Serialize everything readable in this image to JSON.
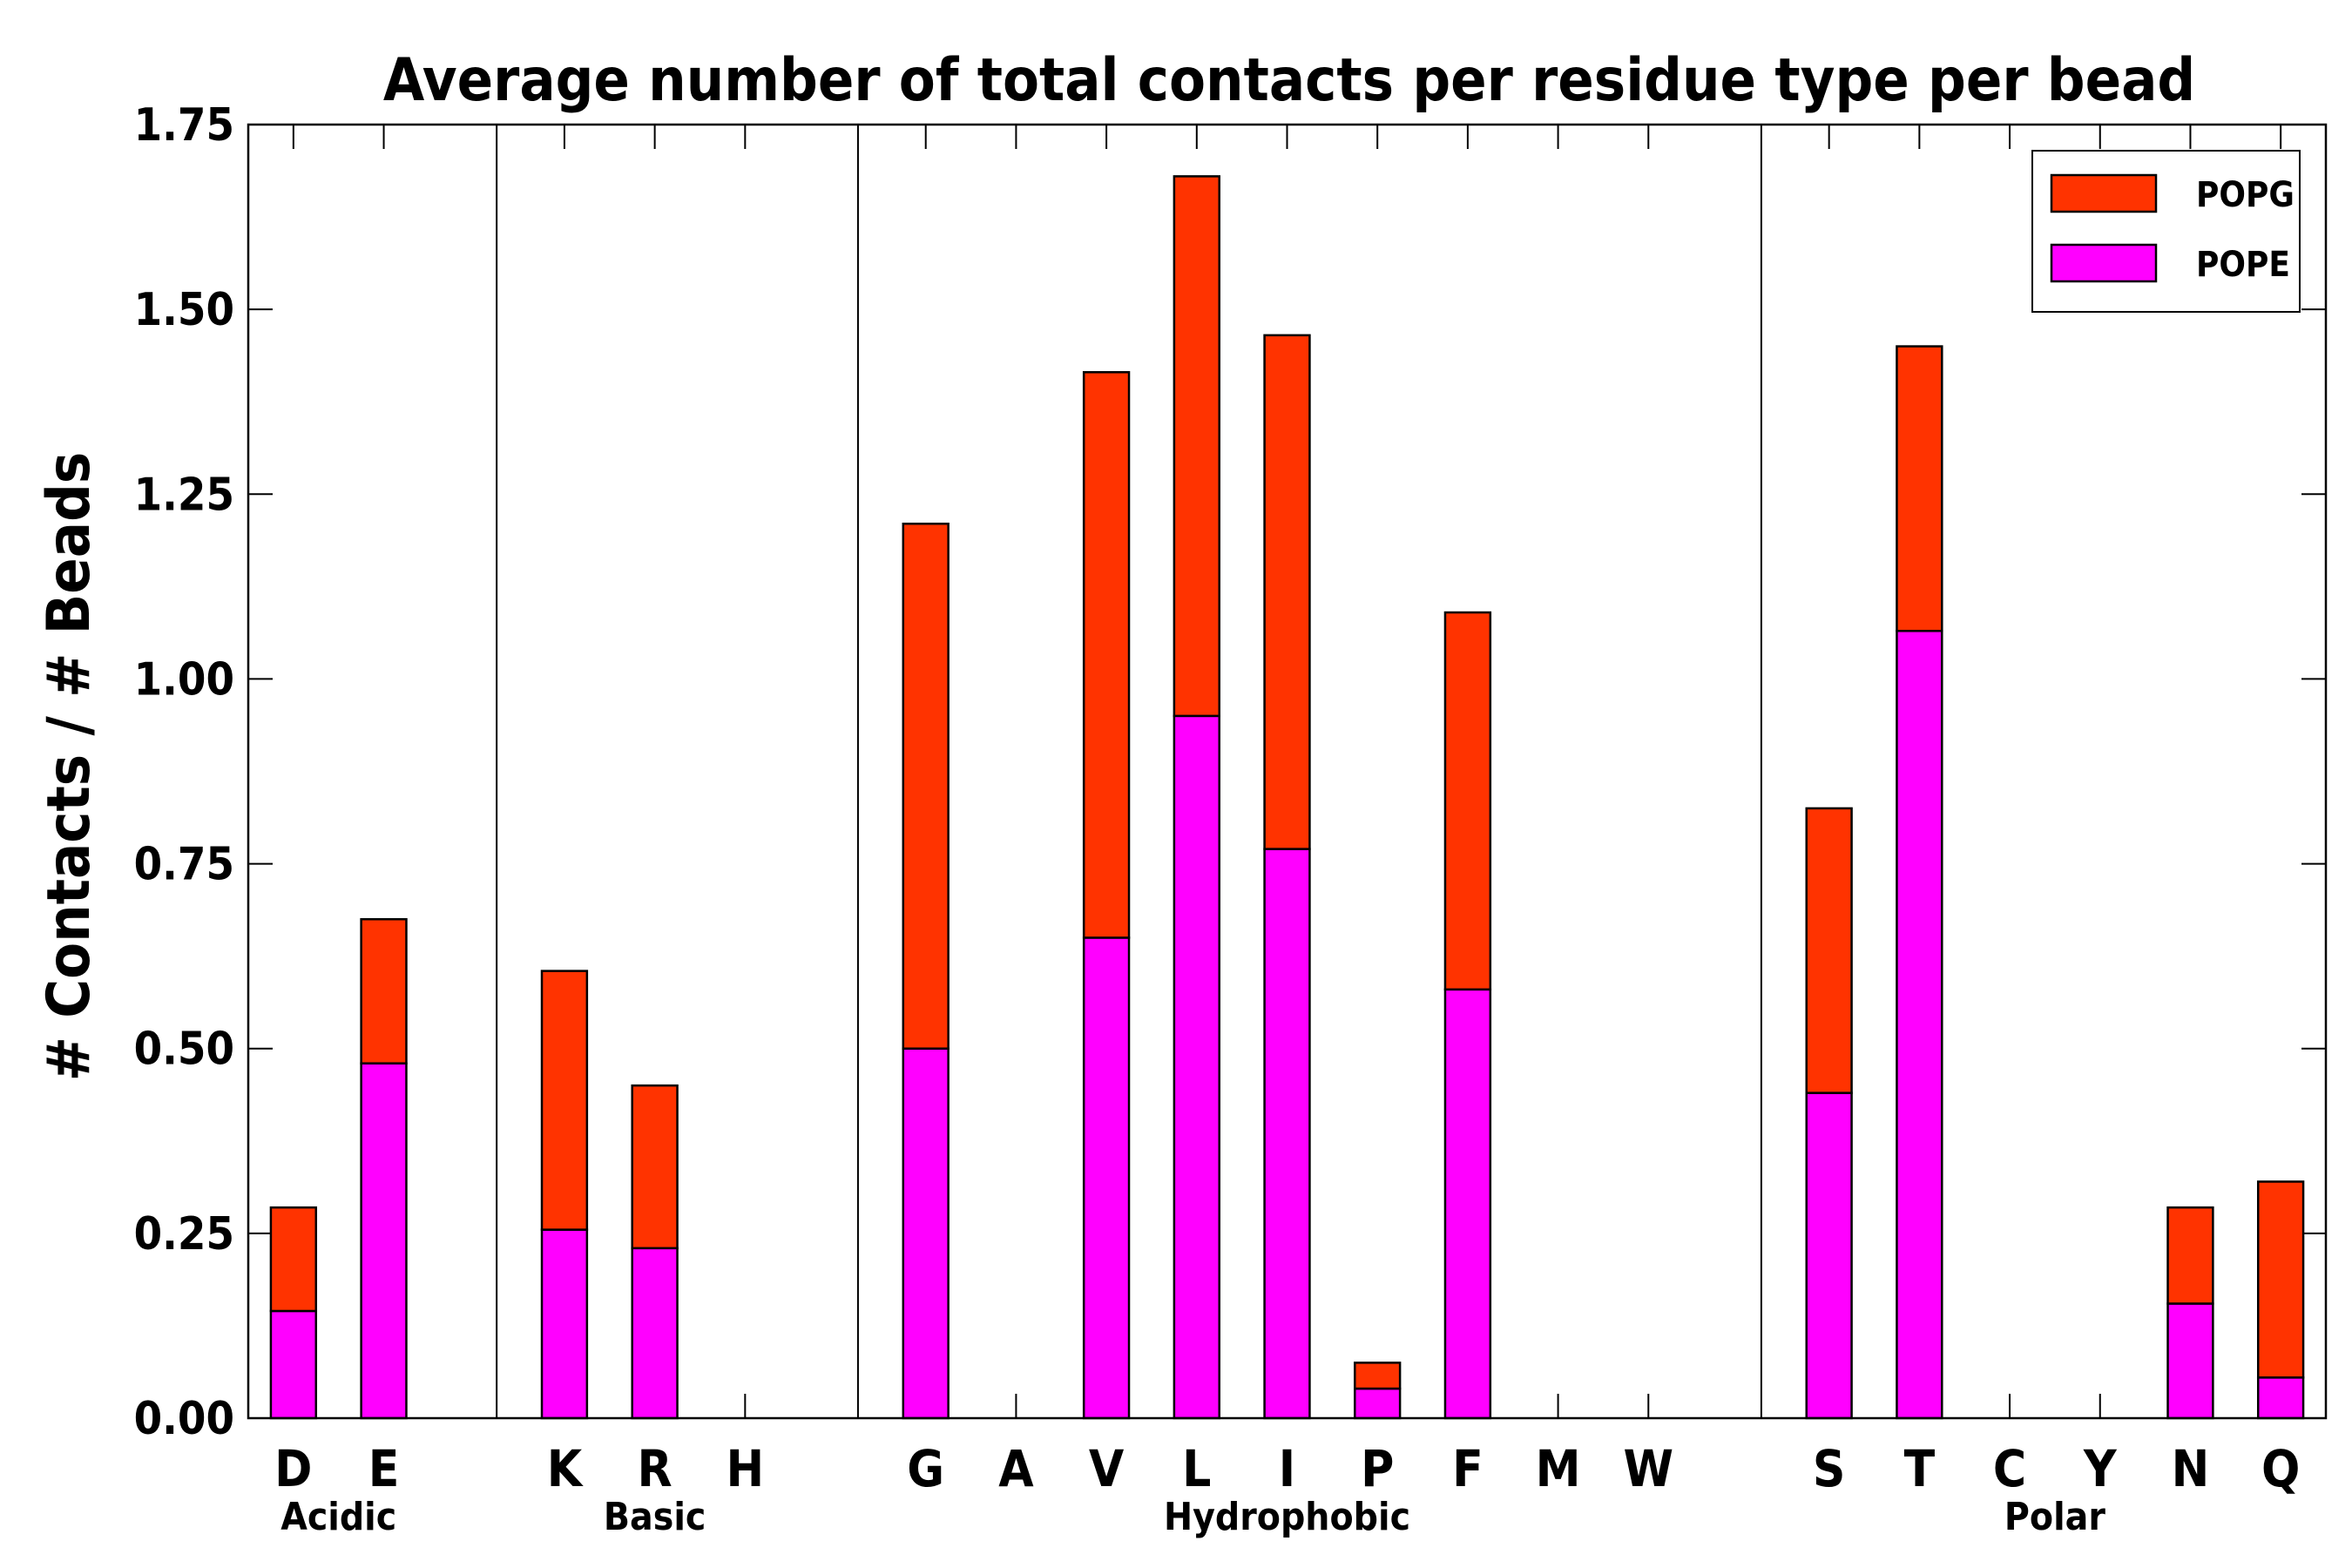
{
  "chart_data": {
    "type": "bar",
    "stacked": true,
    "title": "Average number of total contacts per residue type per bead",
    "xlabel": "",
    "ylabel": "# Contacts / # Beads",
    "ylim": [
      0,
      1.75
    ],
    "yticks": [
      "0.00",
      "0.25",
      "0.50",
      "0.75",
      "1.00",
      "1.25",
      "1.50",
      "1.75"
    ],
    "grid": false,
    "legend_position": "top-right",
    "categories": [
      "D",
      "E",
      "",
      "K",
      "R",
      "H",
      "",
      "G",
      "A",
      "V",
      "L",
      "I",
      "P",
      "F",
      "M",
      "W",
      "",
      "S",
      "T",
      "C",
      "Y",
      "N",
      "Q"
    ],
    "series": [
      {
        "name": "POPE",
        "color": "#ff00ff",
        "values": [
          0.145,
          0.48,
          0,
          0.255,
          0.23,
          0,
          0,
          0.5,
          0,
          0.65,
          0.95,
          0.77,
          0.04,
          0.58,
          0,
          0,
          0,
          0.44,
          1.065,
          0,
          0,
          0.155,
          0.055
        ]
      },
      {
        "name": "POPG",
        "color": "#ff3300",
        "values": [
          0.14,
          0.195,
          0,
          0.35,
          0.22,
          0,
          0,
          0.71,
          0,
          0.765,
          0.73,
          0.695,
          0.035,
          0.51,
          0,
          0,
          0,
          0.385,
          0.385,
          0,
          0,
          0.13,
          0.265
        ]
      }
    ],
    "groups": [
      {
        "label": "Acidic",
        "start": 0,
        "end": 1
      },
      {
        "label": "Basic",
        "start": 3,
        "end": 5
      },
      {
        "label": "Hydrophobic",
        "start": 7,
        "end": 15
      },
      {
        "label": "Polar",
        "start": 17,
        "end": 22
      }
    ],
    "separators_after": [
      2,
      6,
      16
    ],
    "legend": [
      "POPG",
      "POPE"
    ]
  }
}
